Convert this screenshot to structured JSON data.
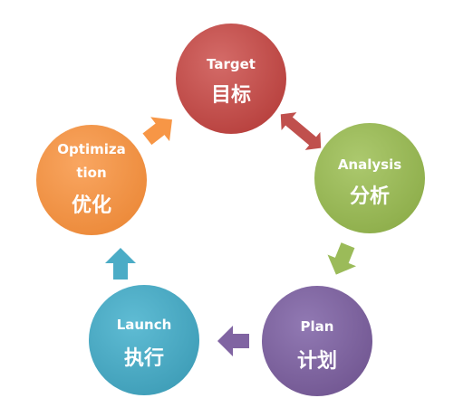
{
  "diagram": {
    "nodes": [
      {
        "id": "target",
        "label_en": "Target",
        "label_zh": "目标",
        "color": "#c0504d"
      },
      {
        "id": "analysis",
        "label_en": "Analysis",
        "label_zh": "分析",
        "color": "#9bbb59"
      },
      {
        "id": "plan",
        "label_en": "Plan",
        "label_zh": "计划",
        "color": "#8064a2"
      },
      {
        "id": "launch",
        "label_en": "Launch",
        "label_zh": "执行",
        "color": "#4bacc6"
      },
      {
        "id": "optimization",
        "label_en": "Optimiza",
        "label_en_2": "tion",
        "label_zh": "优化",
        "color": "#f79646"
      }
    ],
    "edges": [
      {
        "from": "target",
        "to": "analysis",
        "direction": "both",
        "color": "#c0504d"
      },
      {
        "from": "analysis",
        "to": "plan",
        "direction": "forward",
        "color": "#9bbb59"
      },
      {
        "from": "plan",
        "to": "launch",
        "direction": "forward",
        "color": "#8064a2"
      },
      {
        "from": "launch",
        "to": "optimization",
        "direction": "forward",
        "color": "#4bacc6"
      },
      {
        "from": "optimization",
        "to": "target",
        "direction": "forward",
        "color": "#f79646"
      }
    ]
  }
}
